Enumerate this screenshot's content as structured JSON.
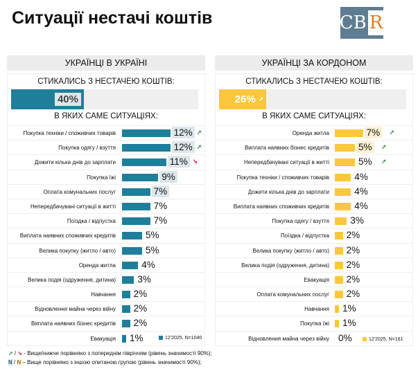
{
  "title": "Ситуації нестачі коштів",
  "logo": {
    "text": "CB",
    "r": "R"
  },
  "colors": {
    "ukraine": "#1f7f9b",
    "abroad": "#fcc73b",
    "hl_ukraine": "#dde6ea",
    "hl_abroad": "#fdf0d2",
    "up": "#4a8a55",
    "down": "#d0202a"
  },
  "chart_data": [
    {
      "type": "bar",
      "panel": "УКРАЇНЦІ В УКРАЇНІ",
      "question": "СТИКАЛИСЬ З НЕСТАЧЕЮ КОШТІВ:",
      "total": 40,
      "total_label": "40%",
      "total_arrow": "",
      "subtitle": "В ЯКИХ САМЕ СИТУАЦІЯХ:",
      "legend": "12'2025, N=1040",
      "categories": [
        "Покупка техніки / споживчих товарів",
        "Покупка одягу / взуття",
        "Дожити кілька днів до зарплати",
        "Покупка їжі",
        "Оплата комунальних послуг",
        "Непередбачувані ситуації в житті",
        "Поїздка / відпустка",
        "Виплата наявних споживчих кредитів",
        "Велика покупку (житло / авто)",
        "Оренда житла",
        "Велика подія (одруження, дитина)",
        "Навчання",
        "Відновлення майна через війну",
        "Виплата наявних бізнес кредитів",
        "Евакуація"
      ],
      "values": [
        12,
        12,
        11,
        9,
        7,
        7,
        7,
        5,
        5,
        4,
        3,
        2,
        2,
        2,
        1
      ],
      "labels": [
        "12%",
        "12%",
        "11%",
        "9%",
        "7%",
        "7%",
        "7%",
        "5%",
        "5%",
        "4%",
        "3%",
        "2%",
        "2%",
        "2%",
        "1%"
      ],
      "highlight": [
        true,
        true,
        true,
        true,
        true,
        false,
        false,
        false,
        false,
        false,
        false,
        false,
        false,
        false,
        false
      ],
      "arrows": [
        "up",
        "up",
        "down",
        "",
        "",
        "",
        "",
        "",
        "",
        "",
        "",
        "",
        "",
        "",
        ""
      ]
    },
    {
      "type": "bar",
      "panel": "УКРАЇНЦІ ЗА КОРДОНОМ",
      "question": "СТИКАЛИСЬ З НЕСТАЧЕЮ КОШТІВ:",
      "total": 26,
      "total_label": "26%",
      "total_arrow": "up",
      "subtitle": "В ЯКИХ САМЕ СИТУАЦІЯХ:",
      "legend": "12'2025, N=161",
      "categories": [
        "Оренда житла",
        "Виплата наявних бізнес кредитів",
        "Непередбачувані ситуації в житті",
        "Покупка техніки / споживчих товарів",
        "Дожити кілька днів до зарплати",
        "Виплата наявних споживчих кредитів",
        "Покупка одягу / взуття",
        "Поїздка / відпустка",
        "Велика покупку (житло / авто)",
        "Велика подія (одруження, дитина)",
        "Евакуація",
        "Оплата комунальних послуг",
        "Навчання",
        "Покупка їжі",
        "Відновлення майна через війну"
      ],
      "values": [
        7,
        5,
        5,
        4,
        4,
        4,
        3,
        2,
        2,
        2,
        2,
        2,
        1,
        1,
        0
      ],
      "labels": [
        "7%",
        "5%",
        "5%",
        "4%",
        "4%",
        "4%",
        "3%",
        "2%",
        "2%",
        "2%",
        "2%",
        "2%",
        "1%",
        "1%",
        "0%"
      ],
      "highlight": [
        true,
        true,
        false,
        false,
        false,
        false,
        false,
        false,
        false,
        false,
        false,
        false,
        false,
        false,
        false
      ],
      "arrows": [
        "up",
        "up",
        "up",
        "",
        "",
        "",
        "",
        "",
        "",
        "",
        "",
        "",
        "",
        "",
        ""
      ]
    }
  ],
  "footnotes": {
    "arrows_sep": " / ",
    "arrows_text": " - Вище/нижче порівняно з попереднім півріччям (рівень значимості 90%);",
    "n_mark": "N",
    "n_sep": " / ",
    "n_text": " – Вище порівняно з іншою опитаною групою (рівень значимості 90%);"
  }
}
